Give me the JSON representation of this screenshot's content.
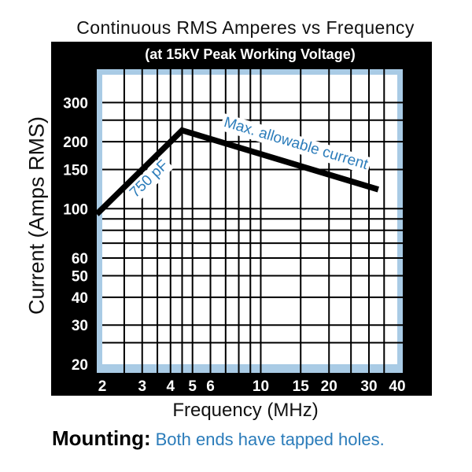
{
  "title": "Continuous RMS Amperes vs Frequency",
  "subtitle": "(at 15kV Peak Working Voltage)",
  "footer": {
    "label": "Mounting:",
    "text": "Both ends have tapped holes."
  },
  "colors": {
    "accent_blue": "#2b7cba",
    "plot_border_blue": "#a9cbe5",
    "frame_black": "#000000",
    "grid_black": "#000000",
    "line_black": "#000000"
  },
  "chart_data": {
    "type": "line",
    "title": "Continuous RMS Amperes vs Frequency",
    "subtitle": "(at 15kV Peak Working Voltage)",
    "xlabel": "Frequency (MHz)",
    "ylabel": "Current (Amps RMS)",
    "x_scale": "log",
    "y_scale": "log",
    "x_range": [
      2,
      40
    ],
    "y_range": [
      20,
      400
    ],
    "x_ticks": [
      2,
      3,
      4,
      5,
      6,
      10,
      15,
      20,
      30,
      40
    ],
    "y_ticks": [
      20,
      30,
      40,
      50,
      60,
      100,
      150,
      200,
      300
    ],
    "x_gridlines": [
      2.5,
      3,
      3.5,
      4,
      4.5,
      5,
      6,
      7,
      8,
      9,
      10,
      15,
      20,
      25,
      30,
      35
    ],
    "y_gridlines": [
      25,
      30,
      40,
      50,
      60,
      70,
      80,
      90,
      100,
      150,
      200,
      250,
      300
    ],
    "grid": true,
    "series": [
      {
        "name": "Max. allowable current",
        "points": [
          [
            2,
            100
          ],
          [
            4.5,
            225
          ],
          [
            33,
            122
          ]
        ]
      }
    ],
    "annotations": [
      "750 pF",
      "Max. allowable current"
    ]
  }
}
